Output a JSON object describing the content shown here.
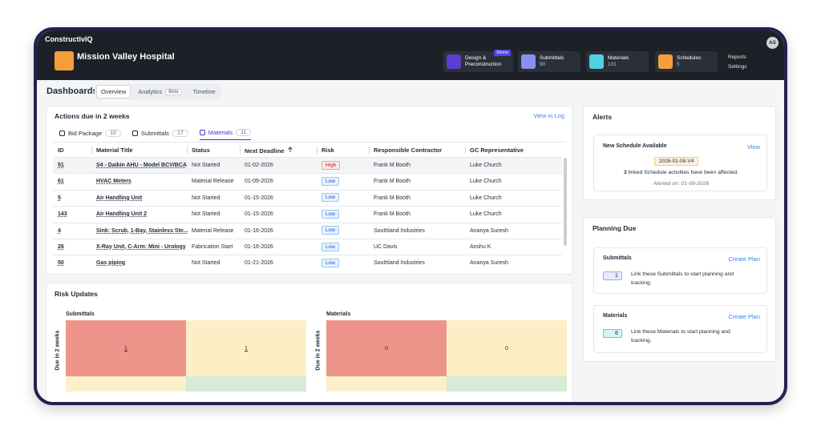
{
  "app": {
    "logo": "ConstructivIQ",
    "project": "Mission Valley Hospital",
    "avatar": "AS",
    "nav": [
      {
        "label": "Design & Preconstruction",
        "badge": "Demo"
      },
      {
        "label": "Submittals",
        "count": 90
      },
      {
        "label": "Materials",
        "count": 131
      },
      {
        "label": "Schedules",
        "count": 5
      }
    ],
    "links": [
      "Reports",
      "Settings"
    ]
  },
  "dashboard": {
    "title": "Dashboards",
    "tabs": [
      {
        "label": "Overview"
      },
      {
        "label": "Analytics",
        "badge": "Beta"
      },
      {
        "label": "Timeline"
      }
    ]
  },
  "actions": {
    "title": "Actions due in 2 weeks",
    "link": "View in Log",
    "tabs": [
      {
        "label": "Bid Package",
        "count": 10
      },
      {
        "label": "Submittals",
        "count": 17
      },
      {
        "label": "Materials",
        "count": 11
      }
    ],
    "columns": [
      "ID",
      "Material Title",
      "Status",
      "Next Deadline",
      "Risk",
      "Responsible Contractor",
      "GC Representative"
    ],
    "rows": [
      [
        "51",
        "S4 - Daikin AHU - Model BCV/BCA",
        "Not Started",
        "01-02-2026",
        "High",
        "Frank M Booth",
        "Luke Church"
      ],
      [
        "61",
        "HVAC Meters",
        "Material Release",
        "01-09-2026",
        "Low",
        "Frank M Booth",
        "Luke Church"
      ],
      [
        "5",
        "Air Handling Unit",
        "Not Started",
        "01-15-2026",
        "Low",
        "Frank M Booth",
        "Luke Church"
      ],
      [
        "143",
        "Air Handling Unit 2",
        "Not Started",
        "01-15-2026",
        "Low",
        "Frank M Booth",
        "Luke Church"
      ],
      [
        "4",
        "Sink: Scrub, 1-Bay, Stainless Ste...",
        "Material Release",
        "01-16-2026",
        "Low",
        "Southland Industries",
        "Ananya Suresh"
      ],
      [
        "26",
        "X-Ray Unit, C-Arm: Mini - Urology",
        "Fabrication Start",
        "01-16-2026",
        "Low",
        "UC Davis",
        "Anshu K"
      ],
      [
        "50",
        "Gas piping",
        "Not Started",
        "01-21-2026",
        "Low",
        "Southland Industries",
        "Ananya Suresh"
      ]
    ]
  },
  "risk": {
    "title": "Risk Updates",
    "y_label": "Due in 2 weeks",
    "panels": [
      {
        "title": "Submittals",
        "cells": [
          "1",
          "1"
        ]
      },
      {
        "title": "Materials",
        "cells": [
          "0",
          "0"
        ]
      }
    ]
  },
  "alerts": {
    "title": "Alerts",
    "card": {
      "title": "New Schedule Available",
      "link": "View",
      "tag": "2026-01-08-V4",
      "count": "3",
      "message": "linked Schedule activities have been affected.",
      "date": "Alerted on: 01-08-2026"
    }
  },
  "planning": {
    "title": "Planning Due",
    "cards": [
      {
        "title": "Submittals",
        "link": "Create Plan",
        "count": "1",
        "text": "Link these Submittals to start planning and tracking."
      },
      {
        "title": "Materials",
        "link": "Create Plan",
        "count": "8",
        "text": "Link these Materials to start planning and tracking."
      }
    ]
  }
}
